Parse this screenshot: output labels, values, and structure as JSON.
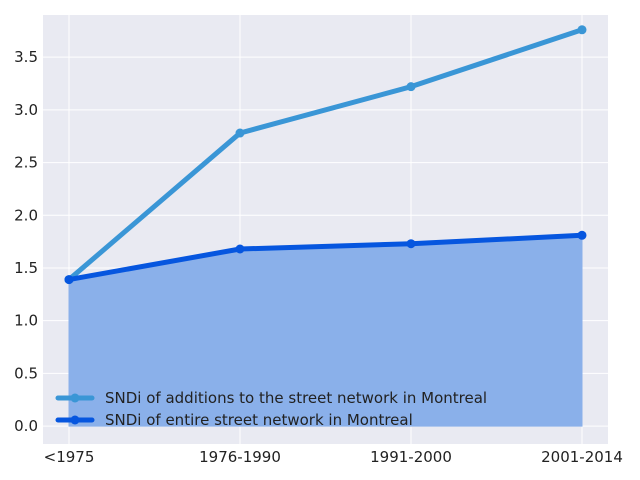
{
  "chart_data": {
    "type": "line",
    "categories": [
      "<1975",
      "1976-1990",
      "1991-2000",
      "2001-2014"
    ],
    "series": [
      {
        "name": "SNDi of additions to the street network in Montreal",
        "values": [
          1.39,
          2.78,
          3.22,
          3.76
        ],
        "color": "#3a96d6",
        "fill": false
      },
      {
        "name": "SNDi of entire street network in Montreal",
        "values": [
          1.39,
          1.68,
          1.73,
          1.81
        ],
        "color": "#0656df",
        "fill": true,
        "fill_color": "#8ab0ea"
      }
    ],
    "ylim": [
      -0.17,
      3.9
    ],
    "yticks": [
      "0.0",
      "0.5",
      "1.0",
      "1.5",
      "2.0",
      "2.5",
      "3.0",
      "3.5"
    ],
    "grid": true,
    "legend_position": "lower-left",
    "background_color": "#e9eaf2",
    "grid_color": "#ffffff"
  }
}
